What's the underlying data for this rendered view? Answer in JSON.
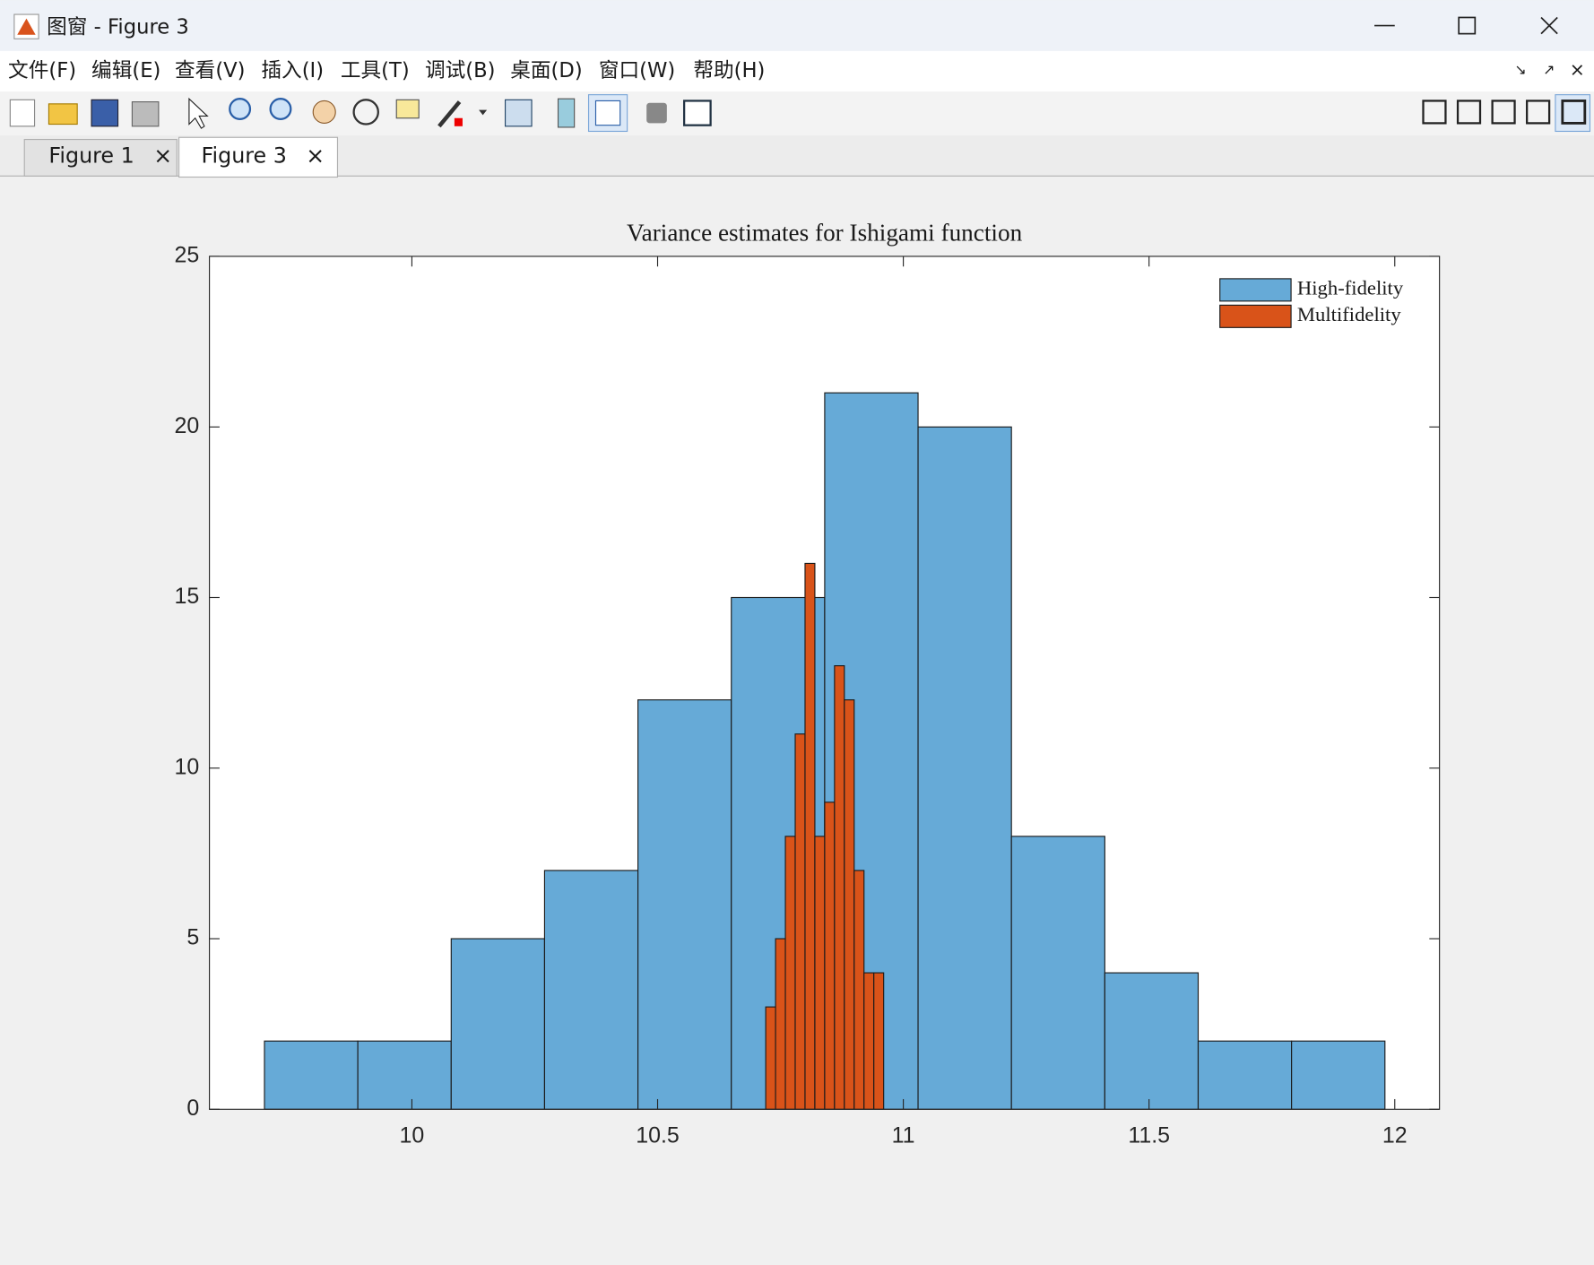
{
  "window": {
    "title": "图窗 - Figure 3",
    "menu": [
      "文件(F)",
      "编辑(E)",
      "查看(V)",
      "插入(I)",
      "工具(T)",
      "调试(B)",
      "桌面(D)",
      "窗口(W)",
      "帮助(H)"
    ],
    "tabs": [
      "Figure 1",
      "Figure 3"
    ]
  },
  "chart_data": {
    "type": "histogram",
    "title": "Variance estimates for Ishigami function",
    "series": [
      {
        "name": "High-fidelity",
        "color": "#66aad7",
        "bins": [
          9.7,
          9.89,
          10.08,
          10.27,
          10.46,
          10.65,
          10.84,
          11.03,
          11.22,
          11.41,
          11.6,
          11.79,
          11.98
        ],
        "values": [
          2,
          2,
          5,
          7,
          12,
          15,
          21,
          20,
          8,
          4,
          2,
          2
        ]
      },
      {
        "name": "Multifidelity",
        "color": "#d95319",
        "bins": [
          10.72,
          10.74,
          10.76,
          10.78,
          10.8,
          10.82,
          10.84,
          10.86,
          10.88,
          10.9,
          10.92,
          10.94,
          10.96
        ],
        "values": [
          3,
          5,
          8,
          11,
          16,
          8,
          9,
          13,
          12,
          7,
          4,
          4
        ]
      }
    ],
    "xlim": [
      9.588,
      12.091
    ],
    "xticks": [
      10,
      10.5,
      11,
      11.5,
      12
    ],
    "ylim": [
      0,
      25
    ],
    "yticks": [
      0,
      5,
      10,
      15,
      20,
      25
    ],
    "legend": "top-right"
  }
}
